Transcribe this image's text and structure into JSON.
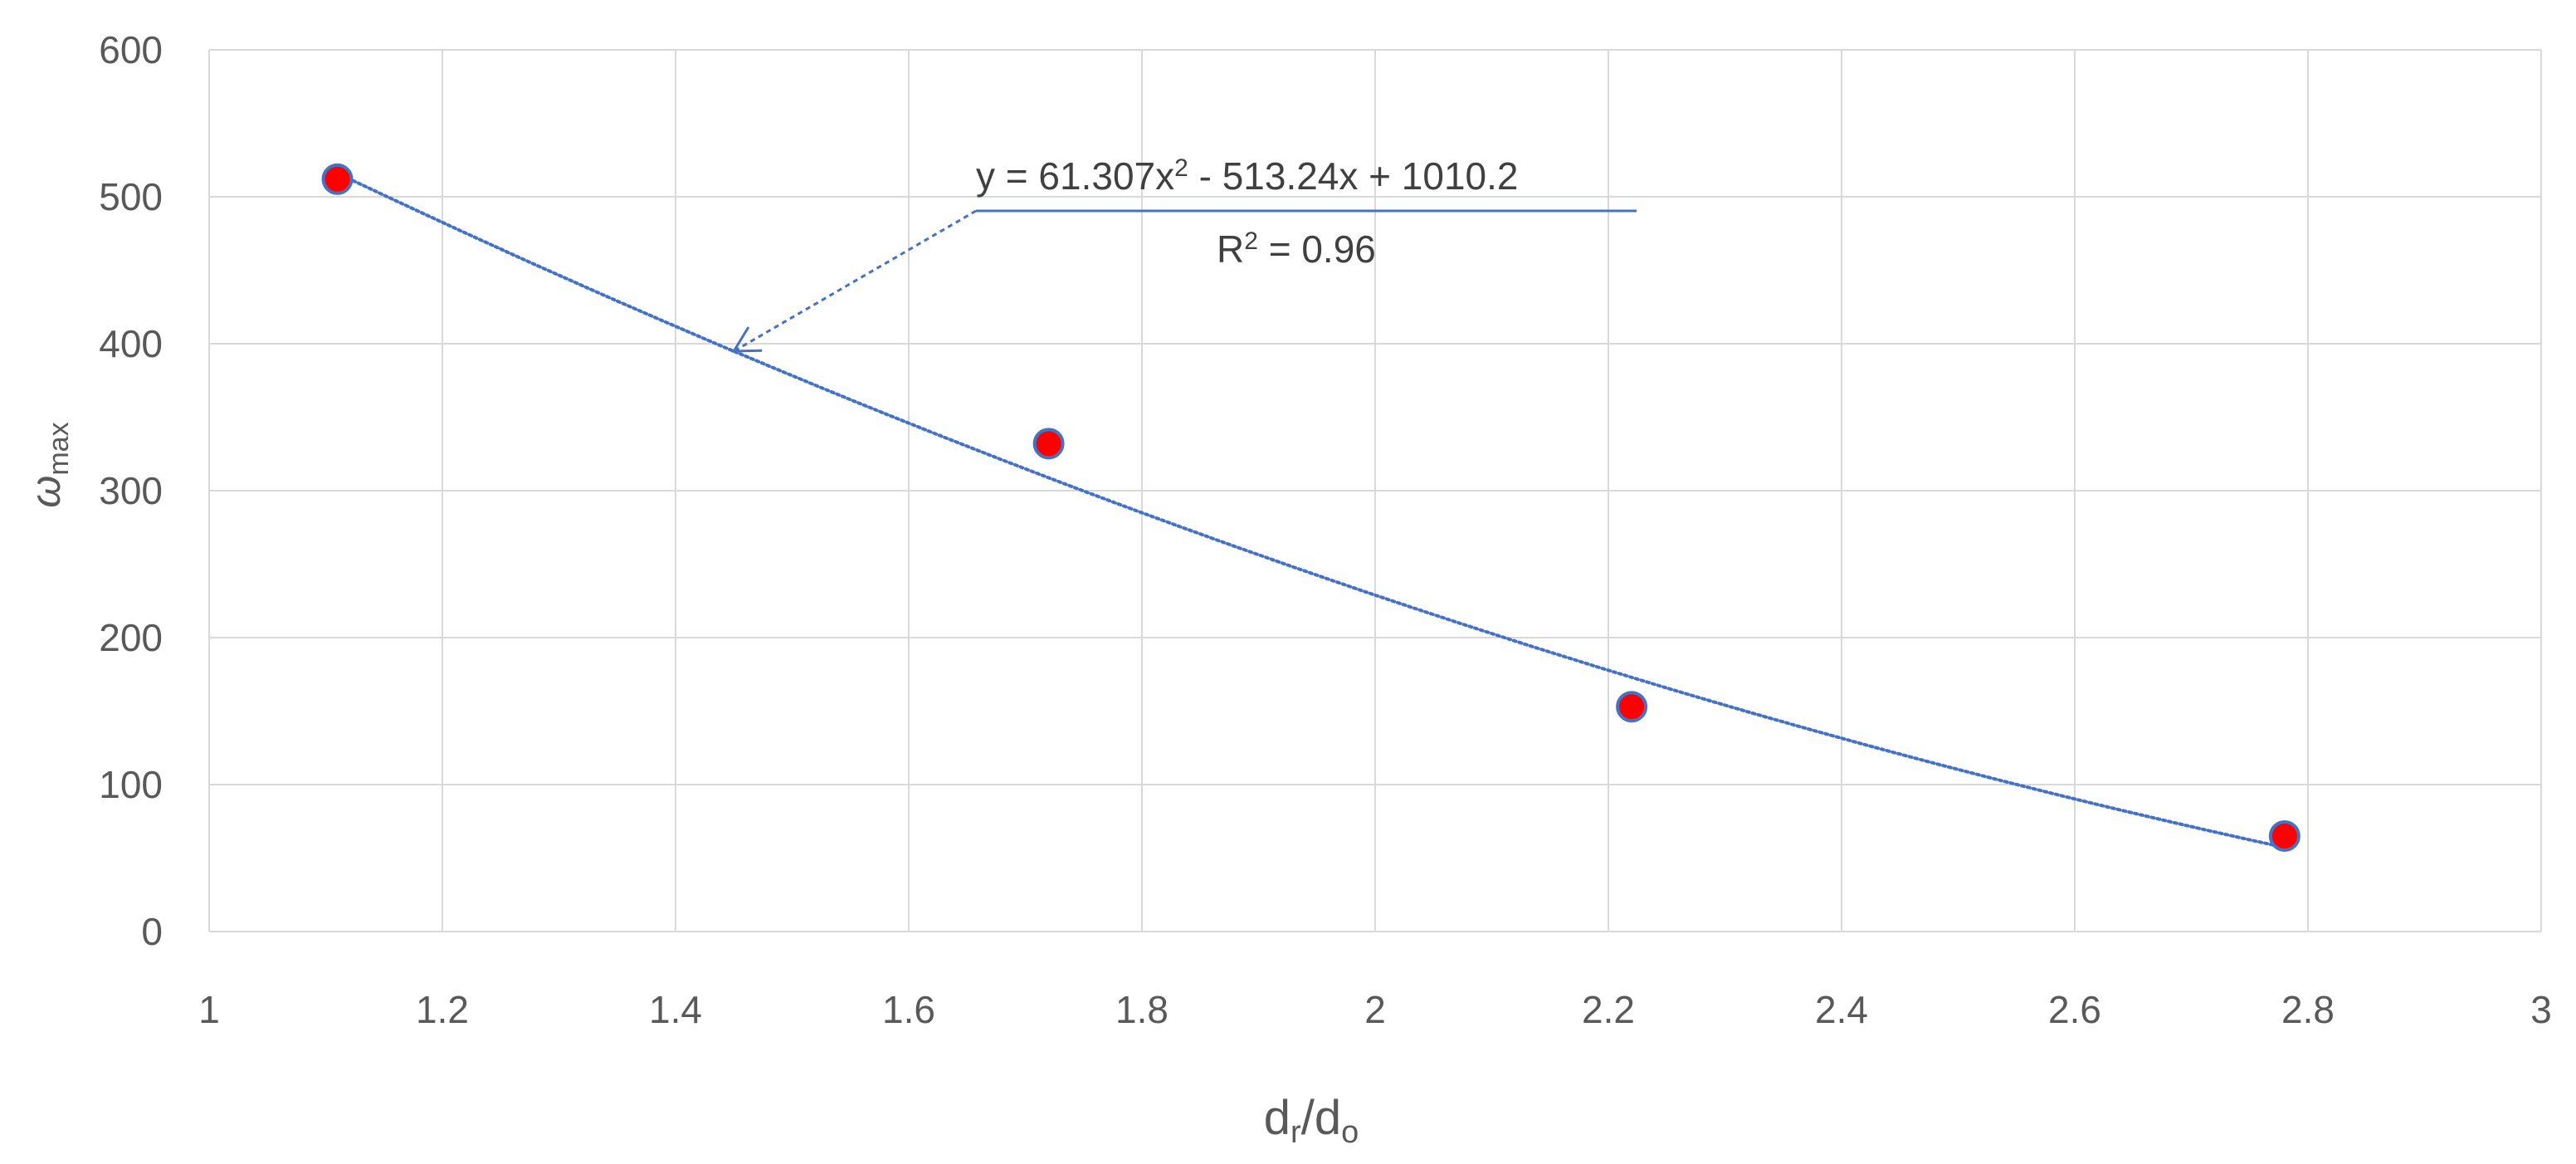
{
  "chart_data": {
    "type": "scatter",
    "xlabel": {
      "base": "d",
      "sub1": "r",
      "sep": "/d",
      "sub2": "o"
    },
    "ylabel": {
      "base": "ω",
      "sub": "max"
    },
    "xlim": [
      1,
      3
    ],
    "ylim": [
      0,
      600
    ],
    "x_ticks": [
      1,
      1.2,
      1.4,
      1.6,
      1.8,
      2,
      2.2,
      2.4,
      2.6,
      2.8,
      3
    ],
    "y_ticks": [
      0,
      100,
      200,
      300,
      400,
      500,
      600
    ],
    "x_tick_labels": [
      "1",
      "1.2",
      "1.4",
      "1.6",
      "1.8",
      "2",
      "2.2",
      "2.4",
      "2.6",
      "2.8",
      "3"
    ],
    "y_tick_labels": [
      "0",
      "100",
      "200",
      "300",
      "400",
      "500",
      "600"
    ],
    "grid": true,
    "points": [
      {
        "x": 1.11,
        "y": 512
      },
      {
        "x": 1.72,
        "y": 332
      },
      {
        "x": 2.22,
        "y": 153
      },
      {
        "x": 2.78,
        "y": 65
      }
    ],
    "marker_color": "#ff0000",
    "marker_edge_color": "#4472c4",
    "trendline": {
      "type": "polynomial",
      "order": 2,
      "coefficients": [
        61.307,
        -513.24,
        1010.2
      ],
      "x_range": [
        1.11,
        2.78
      ],
      "color": "#4472c4",
      "style": "dotted",
      "equation": {
        "pre": "y = 61.307x",
        "sup": "2",
        "post": " - 513.24x + 1010.2"
      },
      "r_squared": {
        "pre": "R",
        "sup": "2",
        "post": " = 0.96"
      }
    }
  }
}
